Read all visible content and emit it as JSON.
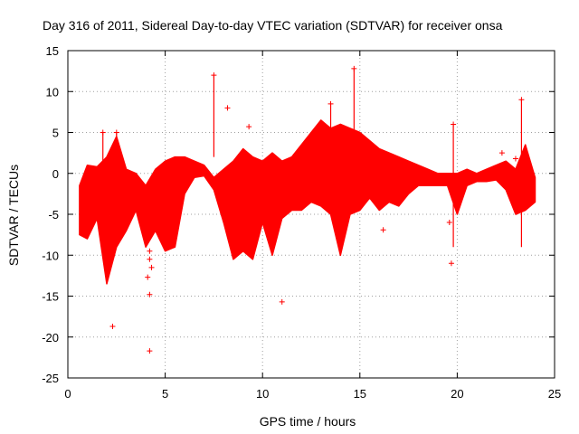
{
  "chart_data": {
    "type": "scatter",
    "title": "Day 316 of 2011, Sidereal Day-to-day VTEC variation (SDTVAR) for receiver onsa",
    "xlabel": "GPS time / hours",
    "ylabel": "SDTVAR / TECUs",
    "xlim": [
      0,
      25
    ],
    "ylim": [
      -25,
      15
    ],
    "xticks": [
      0,
      5,
      10,
      15,
      20,
      25
    ],
    "yticks": [
      -25,
      -20,
      -15,
      -10,
      -5,
      0,
      5,
      10,
      15
    ],
    "grid": true,
    "marker": "+",
    "color": "#ff0000",
    "series": [
      {
        "name": "SDTVAR",
        "dense_band": {
          "x": [
            0.6,
            1.0,
            1.5,
            2.0,
            2.5,
            3.0,
            3.5,
            4.0,
            4.5,
            5.0,
            5.5,
            6.0,
            6.5,
            7.0,
            7.5,
            8.0,
            8.5,
            9.0,
            9.5,
            10.0,
            10.5,
            11.0,
            11.5,
            12.0,
            12.5,
            13.0,
            13.5,
            14.0,
            14.5,
            15.0,
            15.5,
            16.0,
            16.5,
            17.0,
            17.5,
            18.0,
            18.5,
            19.0,
            19.5,
            20.0,
            20.5,
            21.0,
            21.5,
            22.0,
            22.5,
            23.0,
            23.5,
            24.0
          ],
          "upper": [
            -1.5,
            1.0,
            0.8,
            2.0,
            4.5,
            0.5,
            0.0,
            -1.5,
            0.5,
            1.5,
            2.0,
            2.0,
            1.5,
            1.0,
            -0.5,
            0.5,
            1.5,
            3.0,
            2.0,
            1.5,
            2.5,
            1.5,
            2.0,
            3.5,
            5.0,
            6.5,
            5.5,
            6.0,
            5.5,
            5.0,
            4.0,
            3.0,
            2.5,
            2.0,
            1.5,
            1.0,
            0.5,
            0.0,
            0.0,
            0.0,
            0.5,
            0.0,
            0.5,
            1.0,
            1.5,
            0.5,
            3.5,
            -0.5
          ],
          "lower": [
            -7.5,
            -8.0,
            -5.5,
            -13.5,
            -9.0,
            -7.0,
            -4.5,
            -9.0,
            -7.0,
            -9.5,
            -9.0,
            -2.5,
            -0.5,
            -0.3,
            -2.0,
            -6.0,
            -10.5,
            -9.5,
            -10.5,
            -6.0,
            -10.0,
            -5.5,
            -4.5,
            -4.5,
            -3.5,
            -4.0,
            -5.0,
            -10.0,
            -5.0,
            -4.5,
            -3.0,
            -4.5,
            -3.5,
            -4.0,
            -2.5,
            -1.5,
            -1.5,
            -1.5,
            -1.5,
            -5.0,
            -1.5,
            -1.0,
            -1.0,
            -0.8,
            -2.0,
            -5.0,
            -4.5,
            -3.5
          ]
        },
        "spikes": [
          {
            "x": 1.8,
            "y1": 0.0,
            "y2": 5.0
          },
          {
            "x": 2.5,
            "y1": 0.0,
            "y2": 5.0
          },
          {
            "x": 7.5,
            "y1": 2.0,
            "y2": 12.0
          },
          {
            "x": 13.5,
            "y1": 4.0,
            "y2": 8.5
          },
          {
            "x": 14.7,
            "y1": 4.0,
            "y2": 12.8
          },
          {
            "x": 19.8,
            "y1": -9.0,
            "y2": 6.0
          },
          {
            "x": 23.3,
            "y1": -9.0,
            "y2": 9.0
          }
        ],
        "outliers": [
          {
            "x": 2.3,
            "y": -18.7
          },
          {
            "x": 4.2,
            "y": -21.7
          },
          {
            "x": 4.2,
            "y": -14.8
          },
          {
            "x": 4.1,
            "y": -12.7
          },
          {
            "x": 4.3,
            "y": -11.5
          },
          {
            "x": 4.2,
            "y": -10.5
          },
          {
            "x": 4.2,
            "y": -9.5
          },
          {
            "x": 8.2,
            "y": 8.0
          },
          {
            "x": 9.3,
            "y": 5.7
          },
          {
            "x": 11.0,
            "y": -15.7
          },
          {
            "x": 16.2,
            "y": -6.9
          },
          {
            "x": 19.7,
            "y": -11.0
          },
          {
            "x": 19.6,
            "y": -6.0
          },
          {
            "x": 22.3,
            "y": 2.5
          },
          {
            "x": 23.0,
            "y": 1.8
          }
        ]
      }
    ]
  }
}
